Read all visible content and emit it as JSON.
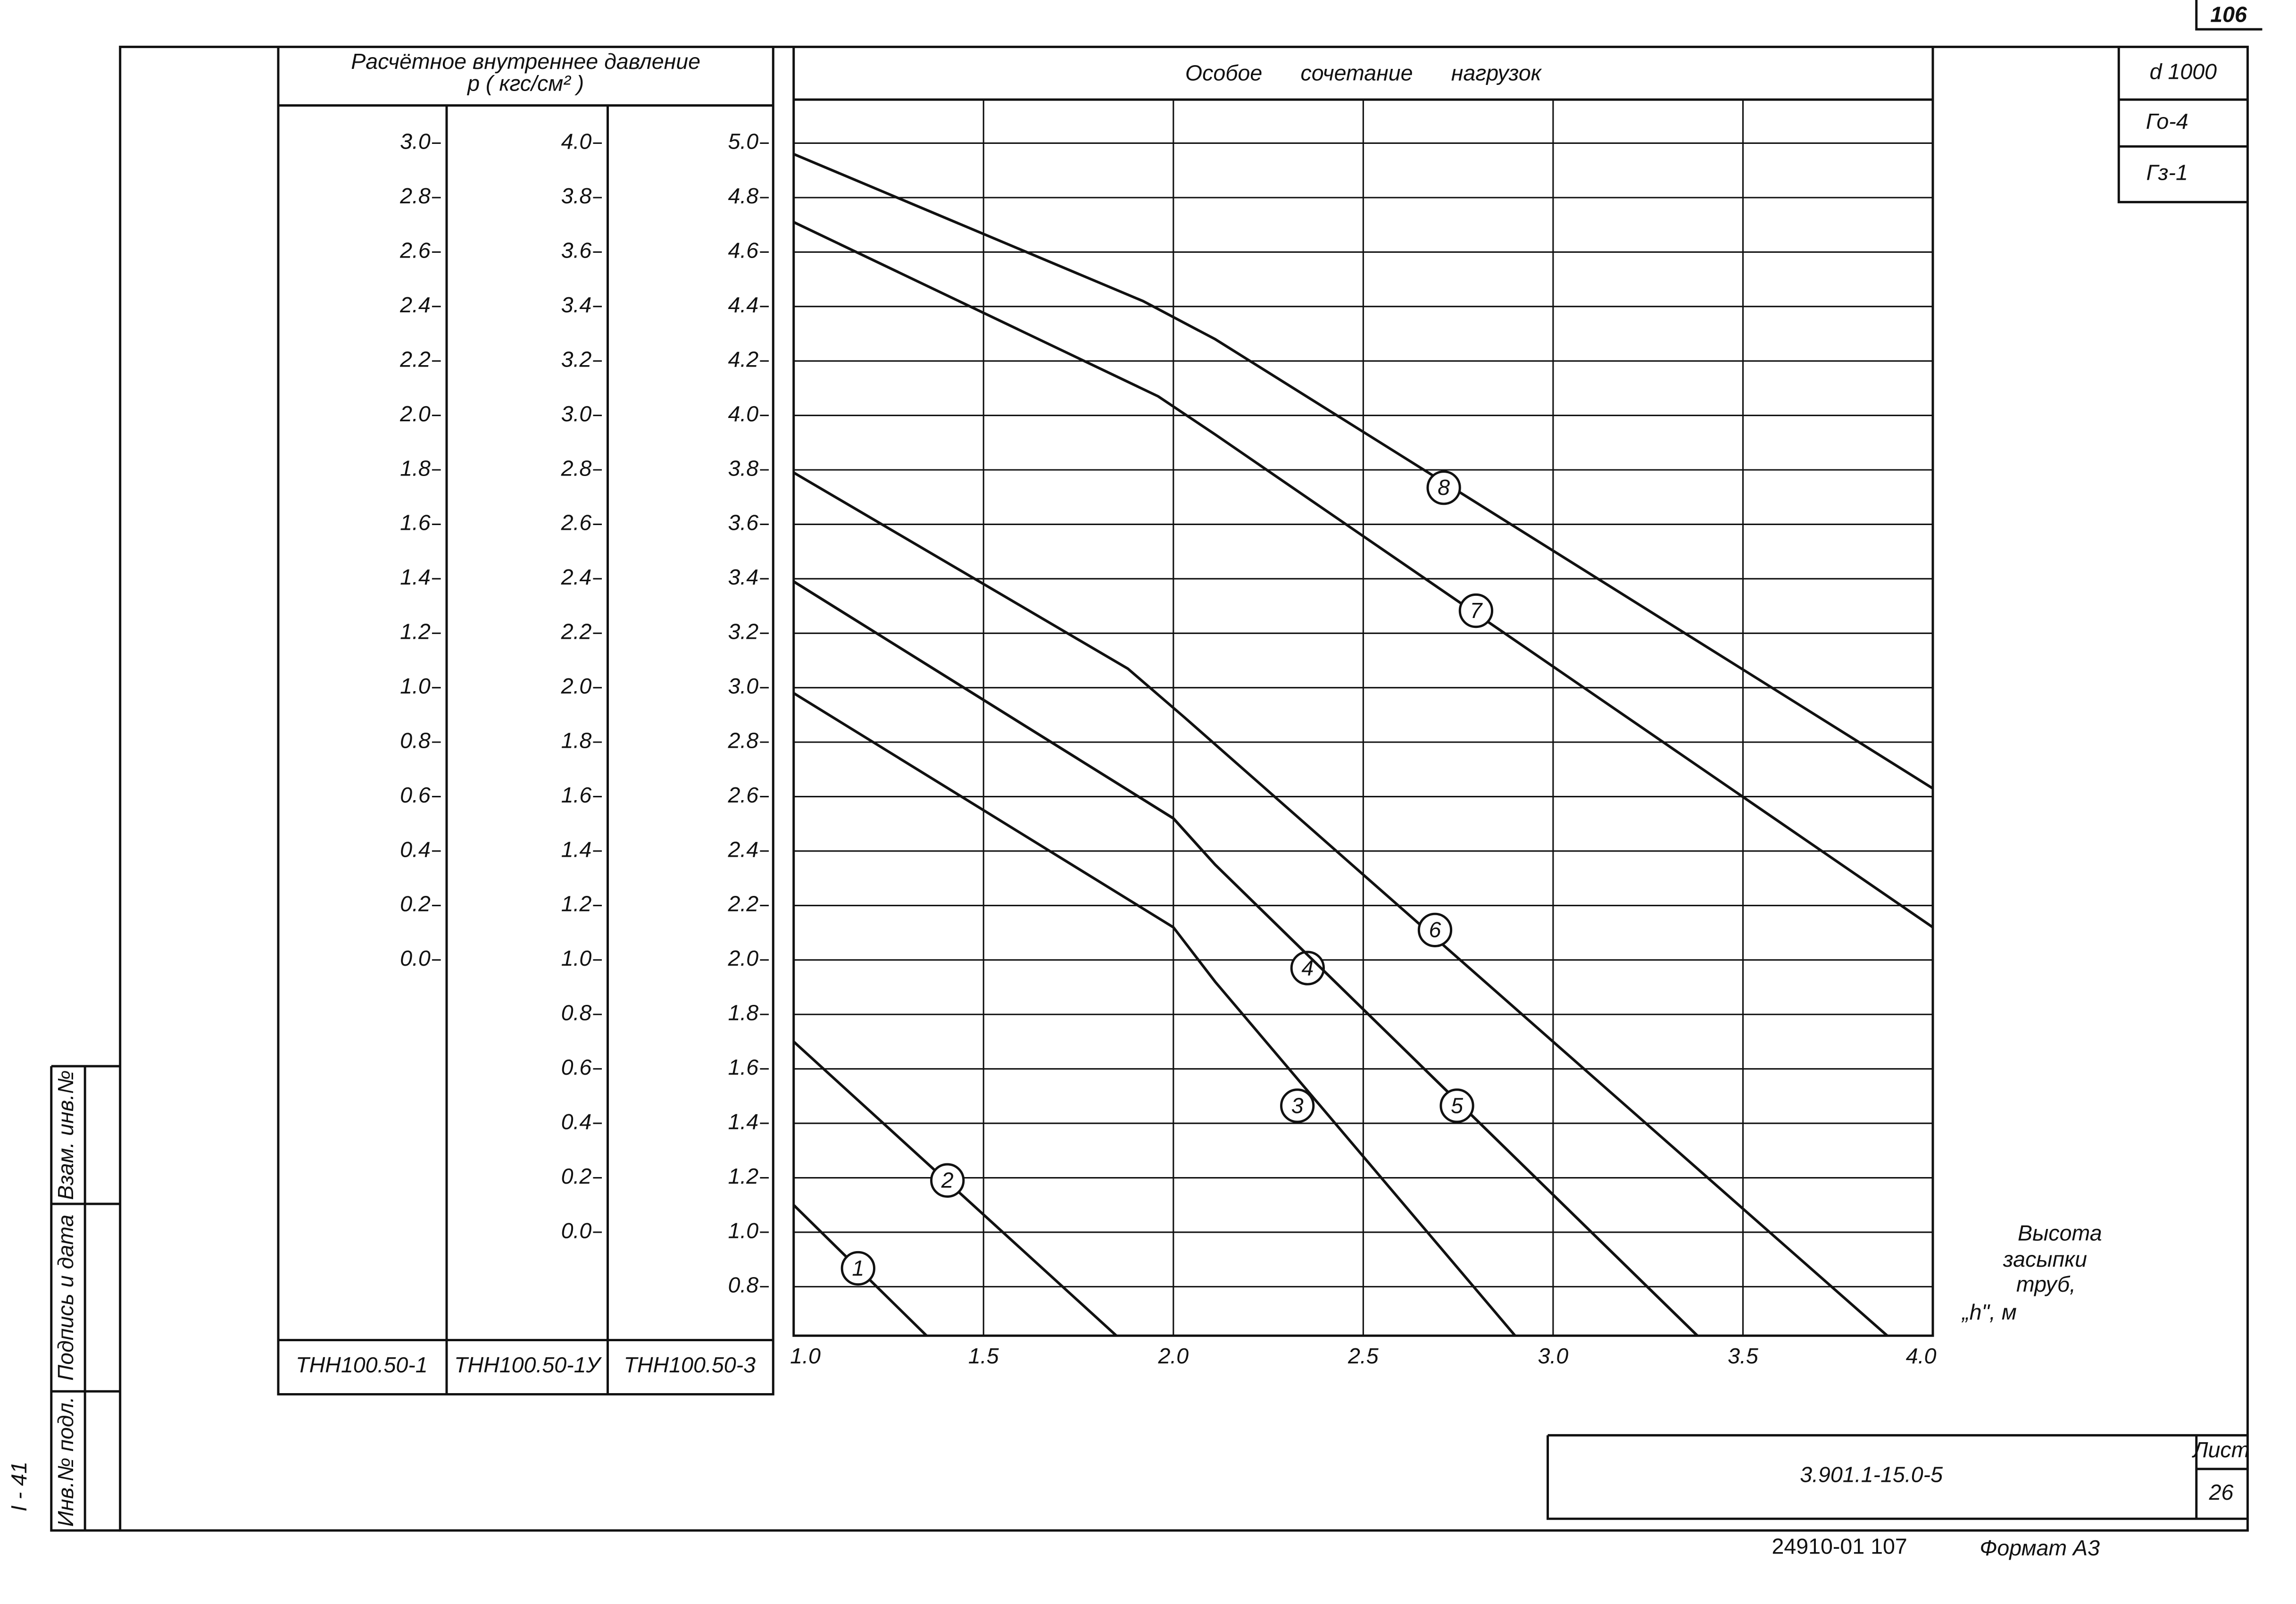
{
  "chart_data": {
    "type": "line",
    "title": "Особое сочетание нагрузок",
    "ylabel_lines": [
      "Расчётное внутреннее давление",
      "p ( кгс/см² )"
    ],
    "xlabel_lines": [
      "Высота",
      "засыпки",
      "труб,",
      "„h\", м"
    ],
    "column_labels": [
      "ТНН100.50-1",
      "ТНН100.50-1У",
      "ТНН100.50-3"
    ],
    "color": "#111111",
    "grid": true,
    "xlim": [
      1.0,
      4.0
    ],
    "xticks": [
      {
        "value": 1.0,
        "label": "1.0"
      },
      1.5,
      {
        "value": 2.0,
        "label": "2.0"
      },
      2.5,
      {
        "value": 3.0,
        "label": "3.0"
      },
      3.5,
      {
        "value": 4.0,
        "label": "4.0"
      }
    ],
    "ylim": [
      0.62,
      5.16
    ],
    "yticks": [
      0.8,
      {
        "value": 1.0,
        "label": "1.0"
      },
      1.2,
      1.4,
      1.6,
      1.8,
      {
        "value": 2.0,
        "label": "2.0"
      },
      2.2,
      2.4,
      2.6,
      2.8,
      {
        "value": 3.0,
        "label": "3.0"
      },
      3.2,
      3.4,
      3.6,
      3.8,
      {
        "value": 4.0,
        "label": "4.0"
      },
      4.2,
      4.4,
      4.6,
      4.8,
      {
        "value": 5.0,
        "label": "5.0"
      }
    ],
    "y2lim": [
      -0.38,
      4.16
    ],
    "y2ticks": [
      {
        "value": 0.0,
        "label": "0.0"
      },
      0.2,
      0.4,
      0.6,
      0.8,
      {
        "value": 1.0,
        "label": "1.0"
      },
      1.2,
      1.4,
      1.6,
      1.8,
      {
        "value": 2.0,
        "label": "2.0"
      },
      2.2,
      2.4,
      2.6,
      2.8,
      {
        "value": 3.0,
        "label": "3.0"
      },
      3.2,
      3.4,
      3.6,
      3.8,
      {
        "value": 4.0,
        "label": "4.0"
      }
    ],
    "y3lim": [
      -1.38,
      3.16
    ],
    "y3ticks": [
      {
        "value": 0.0,
        "label": "0.0"
      },
      0.2,
      0.4,
      0.6,
      0.8,
      {
        "value": 1.0,
        "label": "1.0"
      },
      1.2,
      1.4,
      1.6,
      1.8,
      {
        "value": 2.0,
        "label": "2.0"
      },
      2.2,
      2.4,
      2.6,
      2.8,
      {
        "value": 3.0,
        "label": "3.0"
      }
    ],
    "series": [
      {
        "name": "1",
        "x": [
          1.0,
          1.35
        ],
        "values": [
          1.1,
          0.62
        ]
      },
      {
        "name": "2",
        "x": [
          1.0,
          1.85
        ],
        "values": [
          1.7,
          0.62
        ]
      },
      {
        "name": "3",
        "x": [
          1.0,
          2.0,
          2.11,
          2.9
        ],
        "values": [
          2.98,
          2.12,
          1.92,
          0.62
        ]
      },
      {
        "name": "4",
        "x": [
          1.0,
          2.0,
          2.11,
          3.38
        ],
        "values": [
          3.39,
          2.52,
          2.35,
          0.62
        ]
      },
      {
        "name": "5",
        "x": [
          1.0,
          2.0,
          2.11,
          3.38
        ],
        "values": [
          3.39,
          2.52,
          2.35,
          0.62
        ]
      },
      {
        "name": "6",
        "x": [
          1.0,
          1.88,
          2.03,
          3.88
        ],
        "values": [
          3.79,
          3.07,
          2.89,
          0.62
        ]
      },
      {
        "name": "7",
        "x": [
          1.0,
          1.96,
          2.11,
          4.0
        ],
        "values": [
          4.71,
          4.07,
          3.93,
          2.12
        ]
      },
      {
        "name": "8",
        "x": [
          1.0,
          1.92,
          2.11,
          4.0
        ],
        "values": [
          4.96,
          4.42,
          4.28,
          2.63
        ]
      }
    ]
  },
  "stamp": {
    "sheet_top": "106",
    "marks": [
      "d 1000",
      "Го-4",
      "Гз-1"
    ],
    "code": "3.901.1-15.0-5",
    "sheet_label": "Лист",
    "sheet": "26",
    "order": "24910-01  107",
    "format": "Формат А3",
    "side": [
      "Инв.№ подл.",
      "Подпись и дата",
      "Взам. инв.№"
    ],
    "margin": "I - 41"
  }
}
